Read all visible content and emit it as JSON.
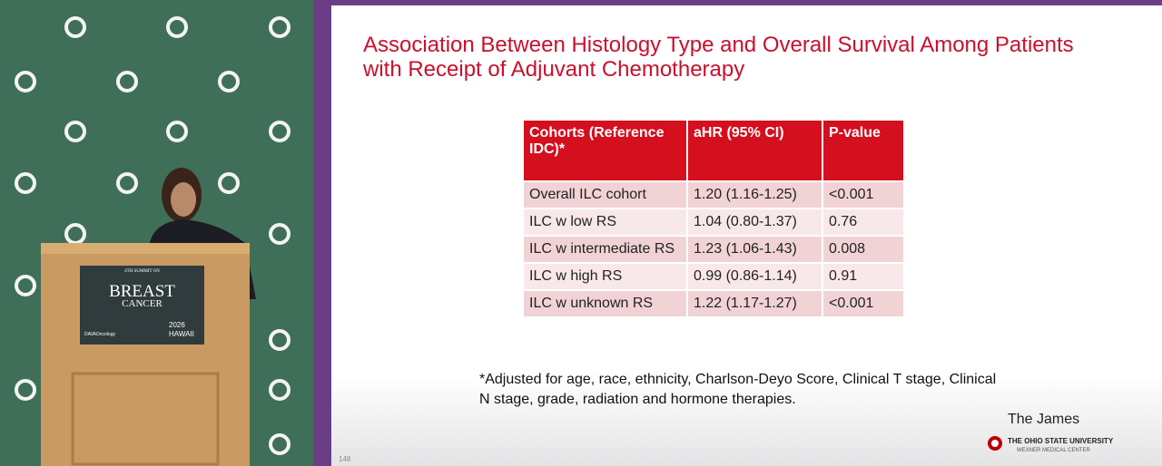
{
  "podium": {
    "line1": "4TH SUMMIT ON",
    "line2": "BREAST",
    "line3": "CANCER",
    "sponsor": "DAVAOncology",
    "year": "2026",
    "place": "HAWAII"
  },
  "slide": {
    "title": "Association Between Histology Type and Overall Survival Among Patients with Receipt of Adjuvant Chemotherapy",
    "table": {
      "header": [
        "Cohorts (Reference IDC)*",
        "aHR (95% CI)",
        "P-value"
      ],
      "rows": [
        [
          "Overall ILC cohort",
          "1.20 (1.16-1.25)",
          "<0.001"
        ],
        [
          "ILC w low RS",
          "1.04 (0.80-1.37)",
          "0.76"
        ],
        [
          "ILC w intermediate RS",
          "1.23 (1.06-1.43)",
          "0.008"
        ],
        [
          "ILC w high RS",
          "0.99 (0.86-1.14)",
          "0.91"
        ],
        [
          "ILC w unknown RS",
          "1.22 (1.17-1.27)",
          "<0.001"
        ]
      ]
    },
    "footnote": "*Adjusted for age, race, ethnicity, Charlson-Deyo Score, Clinical T stage, Clinical N stage, grade, radiation and hormone therapies.",
    "logo": {
      "name": "The James",
      "university": "THE OHIO STATE UNIVERSITY",
      "center": "WEXNER MEDICAL CENTER"
    },
    "slide_number": "148"
  }
}
